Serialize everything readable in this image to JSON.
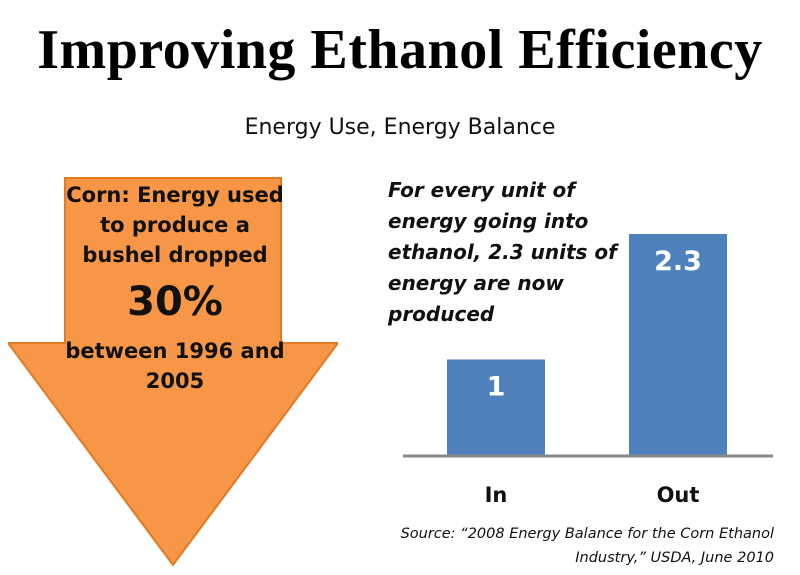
{
  "title": "Improving Ethanol Efficiency",
  "subtitle": "Energy Use, Energy Balance",
  "arrow": {
    "headline": "Corn: Energy used to produce a bushel dropped",
    "value": "30%",
    "footer": "between 1996 and 2005",
    "color": "#f79646"
  },
  "note": "For every unit of energy going into ethanol, 2.3 units of energy are now produced",
  "source": {
    "line1": "Source: “2008 Energy Balance for the Corn Ethanol",
    "line2": "Industry,” USDA, June 2010"
  },
  "chart_data": {
    "type": "bar",
    "categories": [
      "In",
      "Out"
    ],
    "values": [
      1,
      2.3
    ],
    "data_labels": [
      "1",
      "2.3"
    ],
    "ylim": [
      0,
      2.3
    ],
    "grid": false,
    "bar_color": "#4f81bd"
  }
}
